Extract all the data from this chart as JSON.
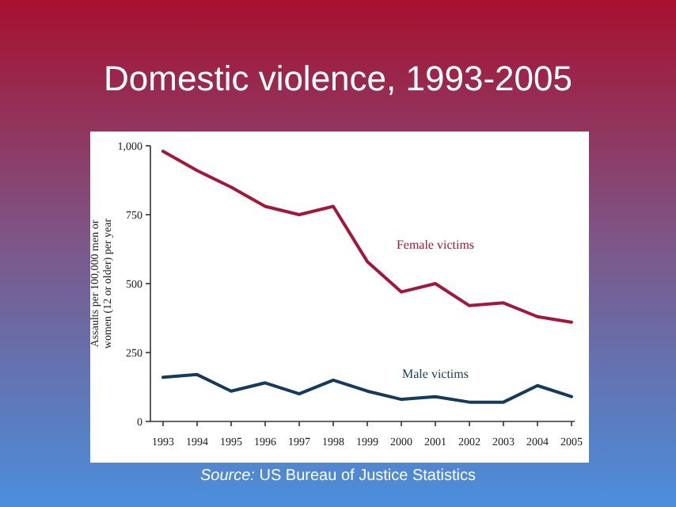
{
  "chart_data": {
    "type": "line",
    "title": "Domestic violence, 1993-2005",
    "ylabel": "Assaults per 100,000 men or women (12 or older) per year",
    "categories": [
      "1993",
      "1994",
      "1995",
      "1996",
      "1997",
      "1998",
      "1999",
      "2000",
      "2001",
      "2002",
      "2003",
      "2004",
      "2005"
    ],
    "series": [
      {
        "name": "Female victims",
        "color": "#a3173a",
        "values": [
          980,
          910,
          850,
          780,
          750,
          780,
          580,
          470,
          500,
          420,
          430,
          380,
          360
        ]
      },
      {
        "name": "Male victims",
        "color": "#163a5c",
        "values": [
          160,
          170,
          110,
          140,
          100,
          150,
          110,
          80,
          90,
          70,
          70,
          130,
          90
        ]
      }
    ],
    "ylim": [
      0,
      1000
    ],
    "yticks": [
      0,
      250,
      500,
      750,
      {
        "value": 1000,
        "label": "1,000"
      }
    ],
    "annotations": [
      "Source: US Bureau of Justice Statistics"
    ]
  }
}
